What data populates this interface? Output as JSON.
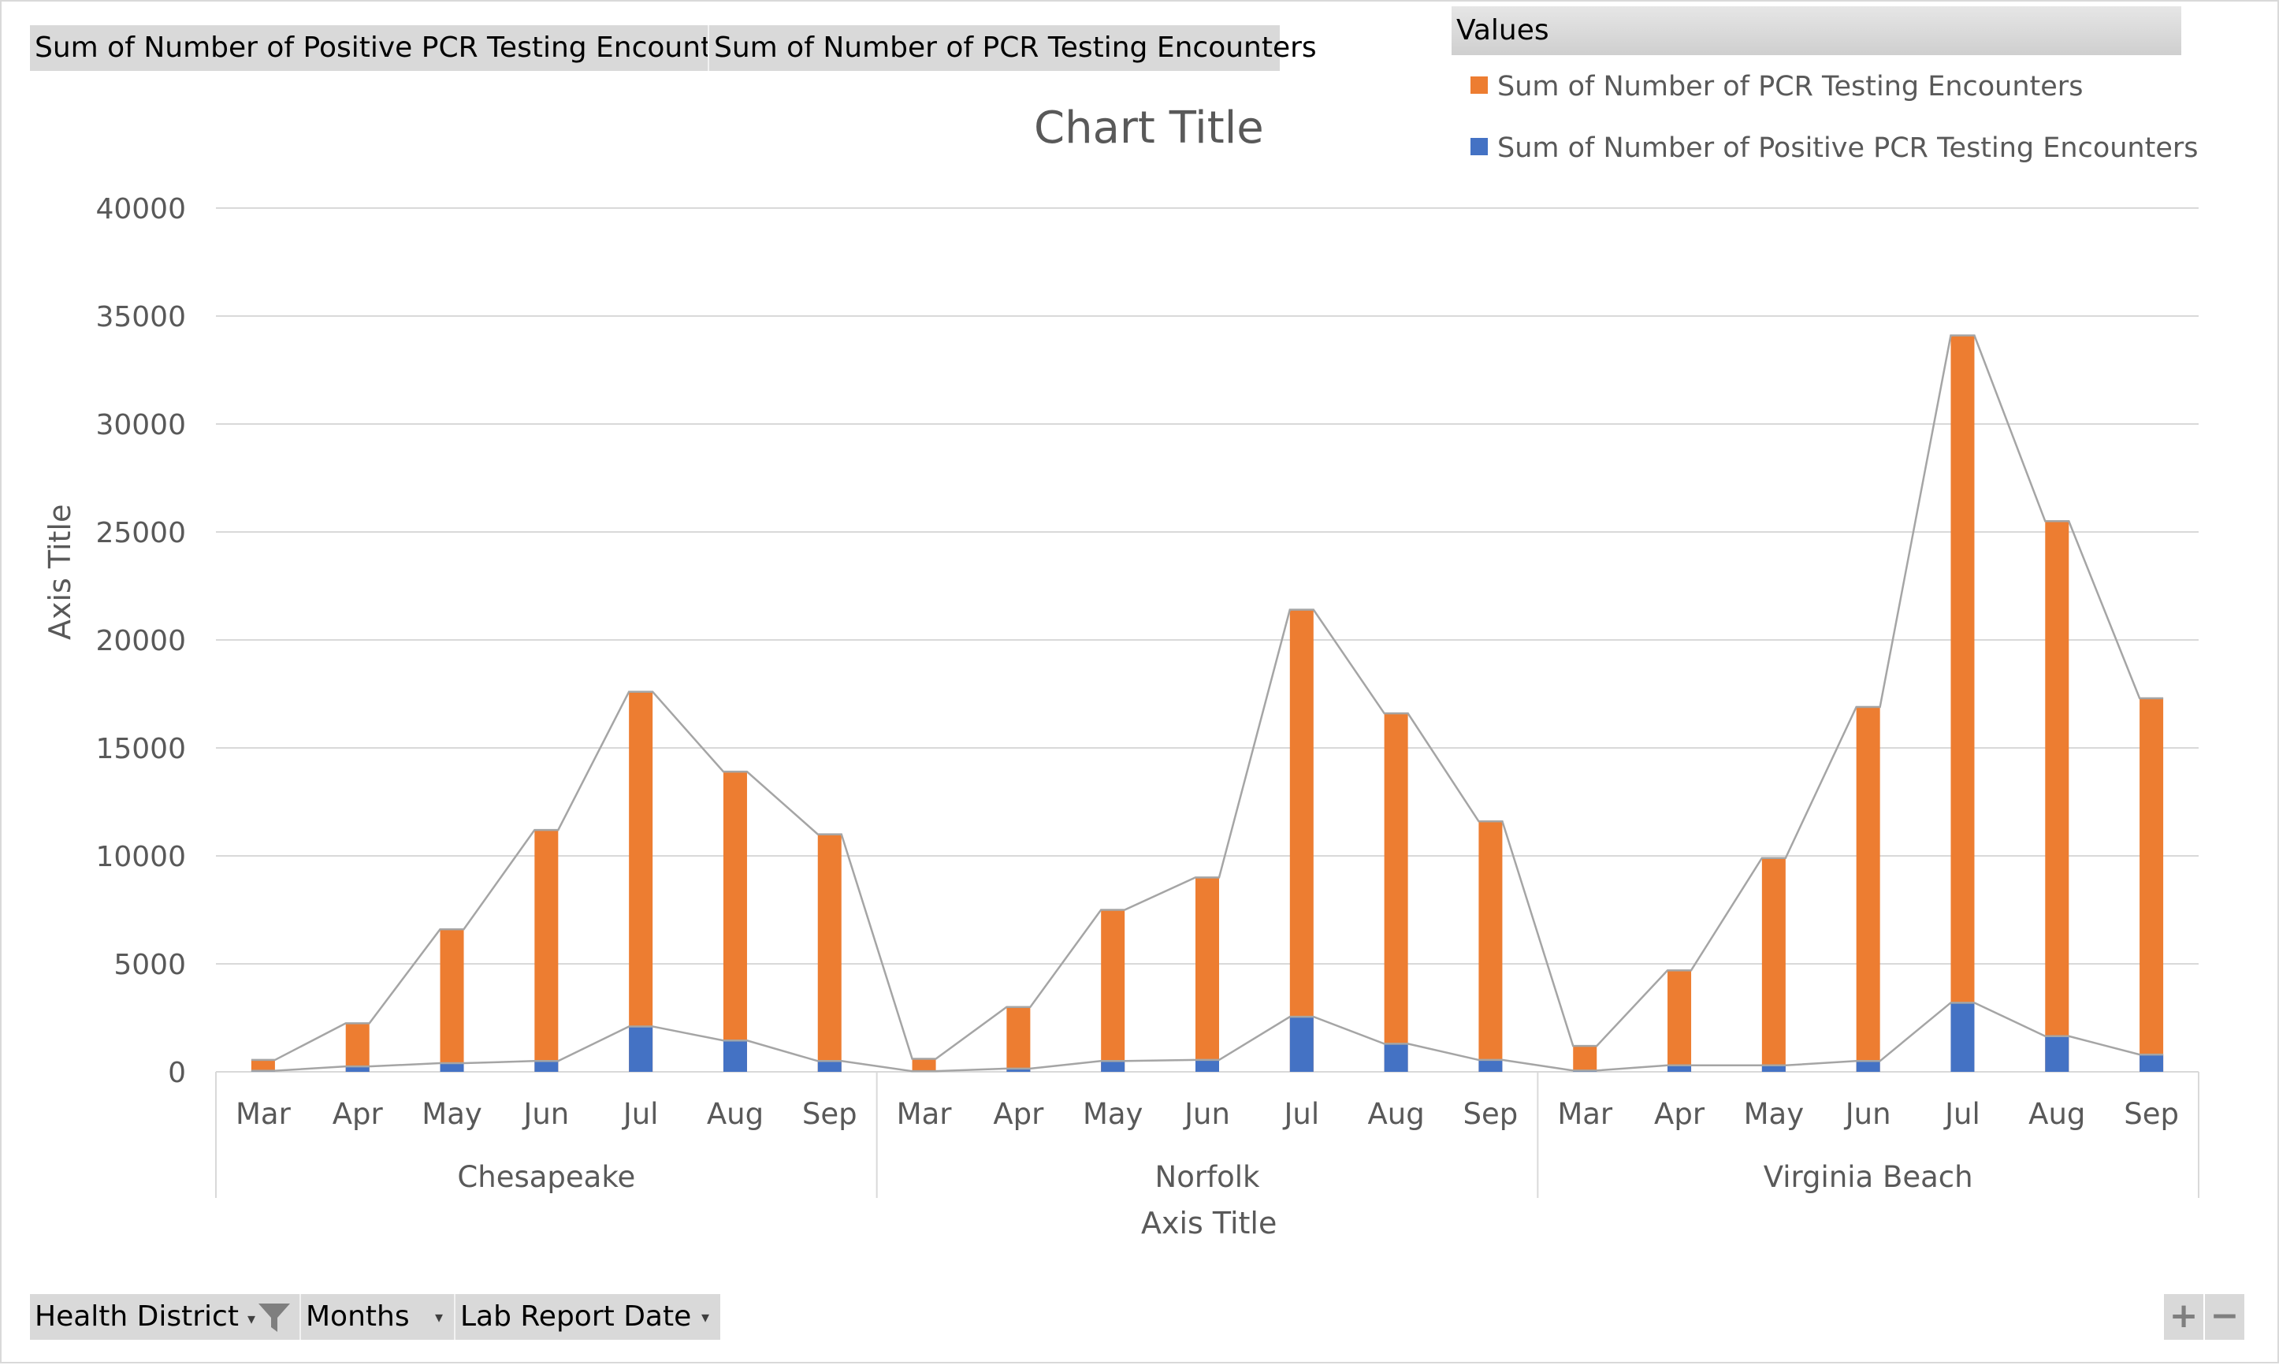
{
  "data_buttons": [
    {
      "label": "Sum of Number of Positive PCR Testing Encounters"
    },
    {
      "label": "Sum of Number of PCR Testing Encounters"
    }
  ],
  "legend": {
    "header": "Values",
    "items": [
      {
        "label": "Sum of Number of PCR Testing Encounters",
        "color": "#ed7d31"
      },
      {
        "label": "Sum of Number of Positive PCR Testing Encounters",
        "color": "#4472c4"
      }
    ]
  },
  "axis_field_buttons": [
    {
      "label": "Health District",
      "icon": "filter-icon"
    },
    {
      "label": "Months",
      "icon": "dropdown-arrow-icon"
    },
    {
      "label": "Lab Report Date",
      "icon": "dropdown-arrow-icon"
    }
  ],
  "zoom": {
    "plus": "+",
    "minus": "−"
  },
  "chart_data": {
    "type": "bar",
    "stacked": true,
    "title": "Chart Title",
    "xlabel": "Axis Title",
    "ylabel": "Axis Title",
    "ylim": [
      0,
      40000
    ],
    "yticks": [
      0,
      5000,
      10000,
      15000,
      20000,
      25000,
      30000,
      35000,
      40000
    ],
    "grid": true,
    "legend_position": "top-right",
    "groups": [
      {
        "name": "Chesapeake",
        "categories": [
          "Mar",
          "Apr",
          "May",
          "Jun",
          "Jul",
          "Aug",
          "Sep"
        ]
      },
      {
        "name": "Norfolk",
        "categories": [
          "Mar",
          "Apr",
          "May",
          "Jun",
          "Jul",
          "Aug",
          "Sep"
        ]
      },
      {
        "name": "Virginia Beach",
        "categories": [
          "Mar",
          "Apr",
          "May",
          "Jun",
          "Jul",
          "Aug",
          "Sep"
        ]
      }
    ],
    "series": [
      {
        "name": "Sum of Number of Positive PCR Testing Encounters",
        "color": "#4472c4",
        "values": [
          50,
          250,
          400,
          500,
          2100,
          1450,
          500,
          30,
          150,
          500,
          550,
          2550,
          1300,
          550,
          60,
          300,
          300,
          500,
          3200,
          1650,
          800
        ]
      },
      {
        "name": "Sum of Number of PCR Testing Encounters",
        "color": "#ed7d31",
        "values": [
          550,
          2250,
          6600,
          11200,
          17600,
          13900,
          11000,
          600,
          3000,
          7500,
          9000,
          21400,
          16600,
          11600,
          1200,
          4700,
          9900,
          16900,
          34100,
          25500,
          17300
        ]
      }
    ],
    "connector_lines": true
  }
}
